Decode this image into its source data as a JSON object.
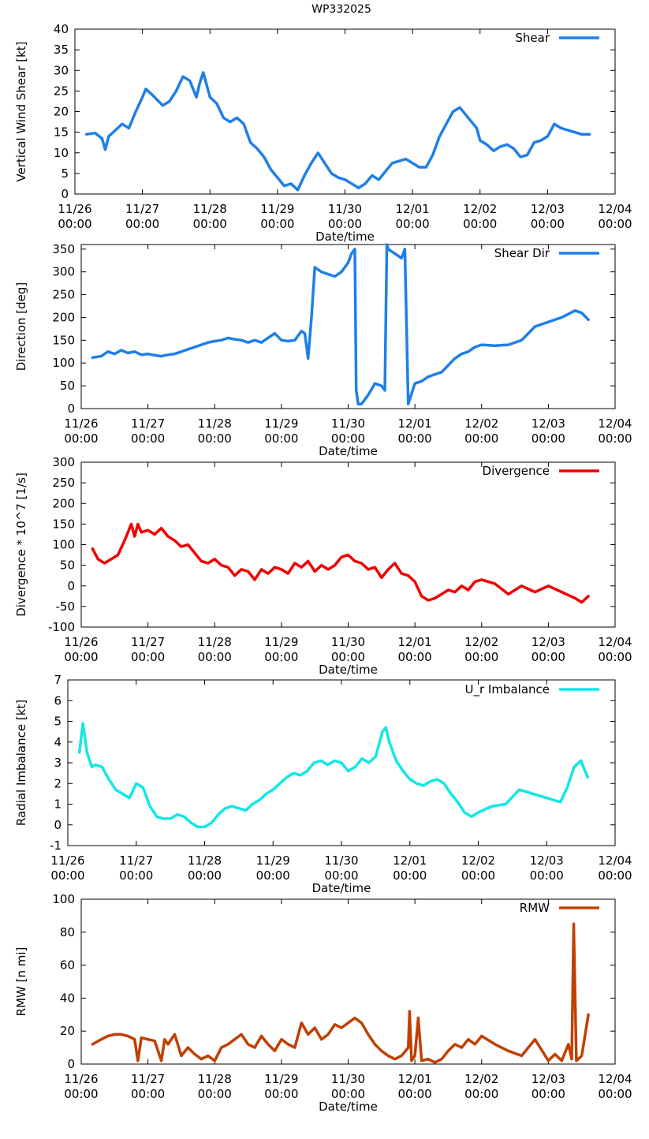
{
  "title": "WP332025",
  "x_axis": {
    "label": "Date/time",
    "ticks": [
      {
        "date": "11/26",
        "time": "00:00"
      },
      {
        "date": "11/27",
        "time": "00:00"
      },
      {
        "date": "11/28",
        "time": "00:00"
      },
      {
        "date": "11/29",
        "time": "00:00"
      },
      {
        "date": "11/30",
        "time": "00:00"
      },
      {
        "date": "12/01",
        "time": "00:00"
      },
      {
        "date": "12/02",
        "time": "00:00"
      },
      {
        "date": "12/03",
        "time": "00:00"
      },
      {
        "date": "12/04",
        "time": "00:00"
      }
    ]
  },
  "chart_data": [
    {
      "type": "line",
      "title": "WP332025",
      "legend": "Shear",
      "ylabel": "Vertical Wind Shear [kt]",
      "xlabel": "Date/time",
      "ylim": [
        0,
        40
      ],
      "yticks": [
        0,
        5,
        10,
        15,
        20,
        25,
        30,
        35,
        40
      ],
      "color": "#1f7fe8",
      "x_days": [
        0.17,
        0.3,
        0.4,
        0.45,
        0.5,
        0.6,
        0.7,
        0.8,
        0.9,
        1.0,
        1.05,
        1.15,
        1.3,
        1.4,
        1.5,
        1.6,
        1.7,
        1.8,
        1.85,
        1.9,
        2.0,
        2.1,
        2.2,
        2.3,
        2.4,
        2.5,
        2.6,
        2.7,
        2.8,
        2.9,
        3.0,
        3.1,
        3.2,
        3.3,
        3.4,
        3.5,
        3.6,
        3.7,
        3.8,
        3.9,
        4.0,
        4.1,
        4.2,
        4.3,
        4.4,
        4.5,
        4.6,
        4.7,
        4.8,
        4.9,
        5.0,
        5.1,
        5.2,
        5.3,
        5.4,
        5.5,
        5.6,
        5.7,
        5.8,
        5.9,
        5.95,
        6.0,
        6.1,
        6.2,
        6.3,
        6.4,
        6.5,
        6.6,
        6.7,
        6.8,
        6.9,
        7.0,
        7.1,
        7.2,
        7.3,
        7.4,
        7.5,
        7.62
      ],
      "values": [
        14.5,
        14.8,
        13.5,
        10.8,
        14,
        15.5,
        17,
        16,
        20,
        23.5,
        25.5,
        24,
        21.5,
        22.5,
        25,
        28.5,
        27.5,
        23.5,
        27,
        29.5,
        23.5,
        22,
        18.5,
        17.5,
        18.5,
        17,
        12.5,
        11,
        9,
        6,
        4,
        2,
        2.5,
        1,
        4.5,
        7.5,
        10,
        7.5,
        5,
        4,
        3.5,
        2.5,
        1.5,
        2.5,
        4.5,
        3.5,
        5.5,
        7.5,
        8,
        8.5,
        7.5,
        6.5,
        6.5,
        9.5,
        14,
        17,
        20,
        21,
        19,
        17,
        16,
        13,
        12,
        10.5,
        11.5,
        12,
        11,
        9,
        9.5,
        12.5,
        13,
        14,
        17,
        16,
        15.5,
        15,
        14.5,
        14.5
      ]
    },
    {
      "type": "line",
      "legend": "Shear Dir",
      "ylabel": "Direction [deg]",
      "xlabel": "Date/time",
      "ylim": [
        0,
        360
      ],
      "yticks": [
        0,
        50,
        100,
        150,
        200,
        250,
        300,
        350
      ],
      "color": "#1f7fe8",
      "x_days": [
        0.17,
        0.3,
        0.4,
        0.5,
        0.6,
        0.7,
        0.8,
        0.9,
        1.0,
        1.1,
        1.2,
        1.3,
        1.4,
        1.5,
        1.6,
        1.7,
        1.8,
        1.9,
        2.0,
        2.1,
        2.2,
        2.3,
        2.4,
        2.5,
        2.6,
        2.7,
        2.8,
        2.9,
        3.0,
        3.1,
        3.2,
        3.3,
        3.35,
        3.4,
        3.45,
        3.5,
        3.6,
        3.7,
        3.8,
        3.9,
        4.0,
        4.05,
        4.1,
        4.12,
        4.15,
        4.2,
        4.3,
        4.4,
        4.5,
        4.55,
        4.58,
        4.6,
        4.7,
        4.8,
        4.85,
        4.9,
        5.0,
        5.1,
        5.2,
        5.3,
        5.4,
        5.5,
        5.6,
        5.7,
        5.8,
        5.9,
        6.0,
        6.2,
        6.4,
        6.6,
        6.8,
        7.0,
        7.2,
        7.4,
        7.5,
        7.6
      ],
      "values": [
        112,
        115,
        125,
        120,
        128,
        122,
        125,
        118,
        120,
        117,
        115,
        118,
        120,
        125,
        130,
        135,
        140,
        145,
        148,
        150,
        155,
        152,
        150,
        145,
        150,
        145,
        155,
        165,
        150,
        148,
        150,
        170,
        165,
        110,
        200,
        310,
        300,
        295,
        290,
        300,
        320,
        340,
        350,
        40,
        10,
        10,
        30,
        55,
        50,
        40,
        360,
        350,
        340,
        330,
        350,
        10,
        55,
        60,
        70,
        75,
        80,
        95,
        110,
        120,
        125,
        135,
        140,
        138,
        140,
        150,
        180,
        190,
        200,
        215,
        210,
        195
      ]
    },
    {
      "type": "line",
      "legend": "Divergence",
      "ylabel": "Divergence * 10^7 [1/s]",
      "xlabel": "Date/time",
      "ylim": [
        -100,
        300
      ],
      "yticks": [
        -100,
        -50,
        0,
        50,
        100,
        150,
        200,
        250,
        300
      ],
      "color": "#f00000",
      "x_days": [
        0.17,
        0.25,
        0.35,
        0.45,
        0.55,
        0.65,
        0.75,
        0.8,
        0.85,
        0.9,
        1.0,
        1.1,
        1.2,
        1.3,
        1.4,
        1.5,
        1.6,
        1.7,
        1.8,
        1.9,
        2.0,
        2.1,
        2.2,
        2.3,
        2.4,
        2.5,
        2.6,
        2.7,
        2.8,
        2.9,
        3.0,
        3.1,
        3.2,
        3.3,
        3.4,
        3.5,
        3.6,
        3.7,
        3.8,
        3.9,
        4.0,
        4.1,
        4.2,
        4.3,
        4.4,
        4.5,
        4.6,
        4.7,
        4.8,
        4.9,
        5.0,
        5.1,
        5.2,
        5.3,
        5.4,
        5.5,
        5.6,
        5.7,
        5.8,
        5.9,
        6.0,
        6.2,
        6.4,
        6.6,
        6.8,
        7.0,
        7.2,
        7.4,
        7.5,
        7.6
      ],
      "values": [
        90,
        65,
        55,
        65,
        75,
        110,
        150,
        120,
        150,
        130,
        135,
        125,
        140,
        120,
        110,
        95,
        100,
        80,
        60,
        55,
        65,
        50,
        45,
        25,
        40,
        35,
        15,
        40,
        30,
        45,
        40,
        30,
        55,
        45,
        60,
        35,
        50,
        40,
        50,
        70,
        75,
        60,
        55,
        40,
        45,
        20,
        40,
        55,
        30,
        25,
        10,
        -25,
        -35,
        -30,
        -20,
        -10,
        -15,
        0,
        -10,
        10,
        15,
        5,
        -20,
        0,
        -15,
        0,
        -15,
        -30,
        -40,
        -25
      ]
    },
    {
      "type": "line",
      "legend": "U_r Imbalance",
      "ylabel": "Radial Imbalance [kt]",
      "xlabel": "Date/time",
      "ylim": [
        -1,
        7
      ],
      "yticks": [
        -1,
        0,
        1,
        2,
        3,
        4,
        5,
        6,
        7
      ],
      "color": "#14e6e6",
      "x_days": [
        0.17,
        0.22,
        0.28,
        0.35,
        0.4,
        0.5,
        0.6,
        0.7,
        0.8,
        0.9,
        1.0,
        1.1,
        1.2,
        1.3,
        1.4,
        1.5,
        1.6,
        1.7,
        1.8,
        1.9,
        2.0,
        2.1,
        2.2,
        2.3,
        2.4,
        2.5,
        2.6,
        2.7,
        2.8,
        2.9,
        3.0,
        3.1,
        3.2,
        3.3,
        3.4,
        3.5,
        3.6,
        3.7,
        3.8,
        3.9,
        4.0,
        4.1,
        4.2,
        4.3,
        4.4,
        4.5,
        4.6,
        4.65,
        4.7,
        4.8,
        4.9,
        5.0,
        5.1,
        5.2,
        5.3,
        5.4,
        5.5,
        5.6,
        5.7,
        5.8,
        5.9,
        6.0,
        6.2,
        6.4,
        6.6,
        6.8,
        7.0,
        7.2,
        7.3,
        7.4,
        7.5,
        7.6
      ],
      "values": [
        3.5,
        4.9,
        3.5,
        2.8,
        2.9,
        2.8,
        2.2,
        1.7,
        1.5,
        1.3,
        2.0,
        1.8,
        0.9,
        0.4,
        0.3,
        0.3,
        0.5,
        0.4,
        0.1,
        -0.1,
        -0.1,
        0.1,
        0.5,
        0.8,
        0.9,
        0.8,
        0.7,
        1.0,
        1.2,
        1.5,
        1.7,
        2.0,
        2.3,
        2.5,
        2.4,
        2.6,
        3.0,
        3.1,
        2.9,
        3.1,
        3.0,
        2.6,
        2.8,
        3.2,
        3.0,
        3.3,
        4.5,
        4.7,
        4.0,
        3.1,
        2.6,
        2.2,
        2.0,
        1.9,
        2.1,
        2.2,
        2.0,
        1.5,
        1.1,
        0.6,
        0.4,
        0.6,
        0.9,
        1.0,
        1.7,
        1.5,
        1.3,
        1.1,
        1.8,
        2.8,
        3.1,
        2.3
      ]
    },
    {
      "type": "line",
      "legend": "RMW",
      "ylabel": "RMW [n mi]",
      "xlabel": "Date/time",
      "ylim": [
        0,
        100
      ],
      "yticks": [
        0,
        20,
        40,
        60,
        80,
        100
      ],
      "color": "#c04000",
      "x_days": [
        0.17,
        0.3,
        0.4,
        0.5,
        0.6,
        0.7,
        0.8,
        0.85,
        0.9,
        1.0,
        1.1,
        1.2,
        1.25,
        1.3,
        1.4,
        1.5,
        1.6,
        1.7,
        1.8,
        1.9,
        2.0,
        2.1,
        2.2,
        2.3,
        2.4,
        2.5,
        2.6,
        2.7,
        2.8,
        2.9,
        3.0,
        3.1,
        3.2,
        3.3,
        3.4,
        3.5,
        3.6,
        3.7,
        3.8,
        3.9,
        4.0,
        4.1,
        4.2,
        4.3,
        4.4,
        4.5,
        4.6,
        4.7,
        4.8,
        4.9,
        4.92,
        4.95,
        5.0,
        5.05,
        5.1,
        5.2,
        5.3,
        5.4,
        5.5,
        5.6,
        5.7,
        5.8,
        5.9,
        6.0,
        6.2,
        6.4,
        6.6,
        6.8,
        7.0,
        7.1,
        7.2,
        7.3,
        7.35,
        7.38,
        7.42,
        7.5,
        7.6
      ],
      "values": [
        12,
        15,
        17,
        18,
        18,
        17,
        15,
        2,
        16,
        15,
        14,
        2,
        15,
        12,
        18,
        5,
        10,
        6,
        3,
        5,
        2,
        10,
        12,
        15,
        18,
        12,
        10,
        17,
        12,
        8,
        15,
        12,
        10,
        25,
        18,
        22,
        15,
        18,
        24,
        22,
        25,
        28,
        25,
        18,
        12,
        8,
        5,
        3,
        5,
        10,
        32,
        2,
        5,
        28,
        2,
        3,
        1,
        3,
        8,
        12,
        10,
        15,
        12,
        17,
        12,
        8,
        5,
        15,
        2,
        6,
        2,
        12,
        3,
        85,
        2,
        5,
        30
      ]
    }
  ]
}
